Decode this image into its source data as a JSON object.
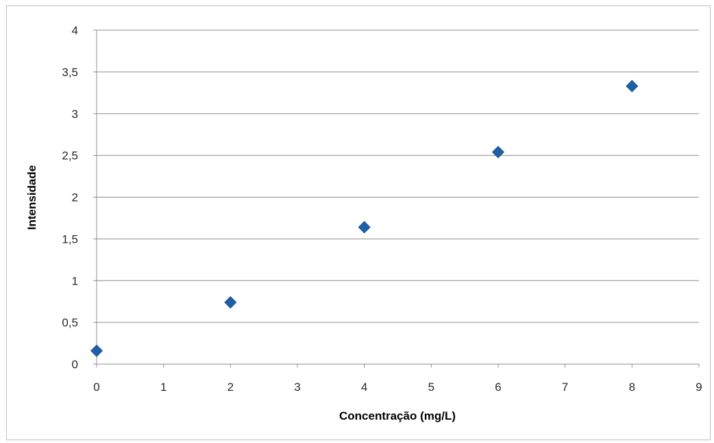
{
  "chart_data": {
    "type": "scatter",
    "title": "",
    "xlabel": "Concentração (mg/L)",
    "ylabel": "Intensidade",
    "xlim": [
      0,
      9
    ],
    "ylim": [
      0,
      4
    ],
    "x_ticks": [
      "0",
      "1",
      "2",
      "3",
      "4",
      "5",
      "6",
      "7",
      "8",
      "9"
    ],
    "y_ticks": [
      "0",
      "0,5",
      "1",
      "1,5",
      "2",
      "2,5",
      "3",
      "3,5",
      "4"
    ],
    "grid": "horizontal",
    "legend": "none",
    "marker": "diamond",
    "series": [
      {
        "x": [
          0,
          2,
          4,
          6,
          8
        ],
        "y": [
          0.16,
          0.74,
          1.64,
          2.54,
          3.33
        ],
        "color": "#1f5fa8"
      }
    ]
  }
}
